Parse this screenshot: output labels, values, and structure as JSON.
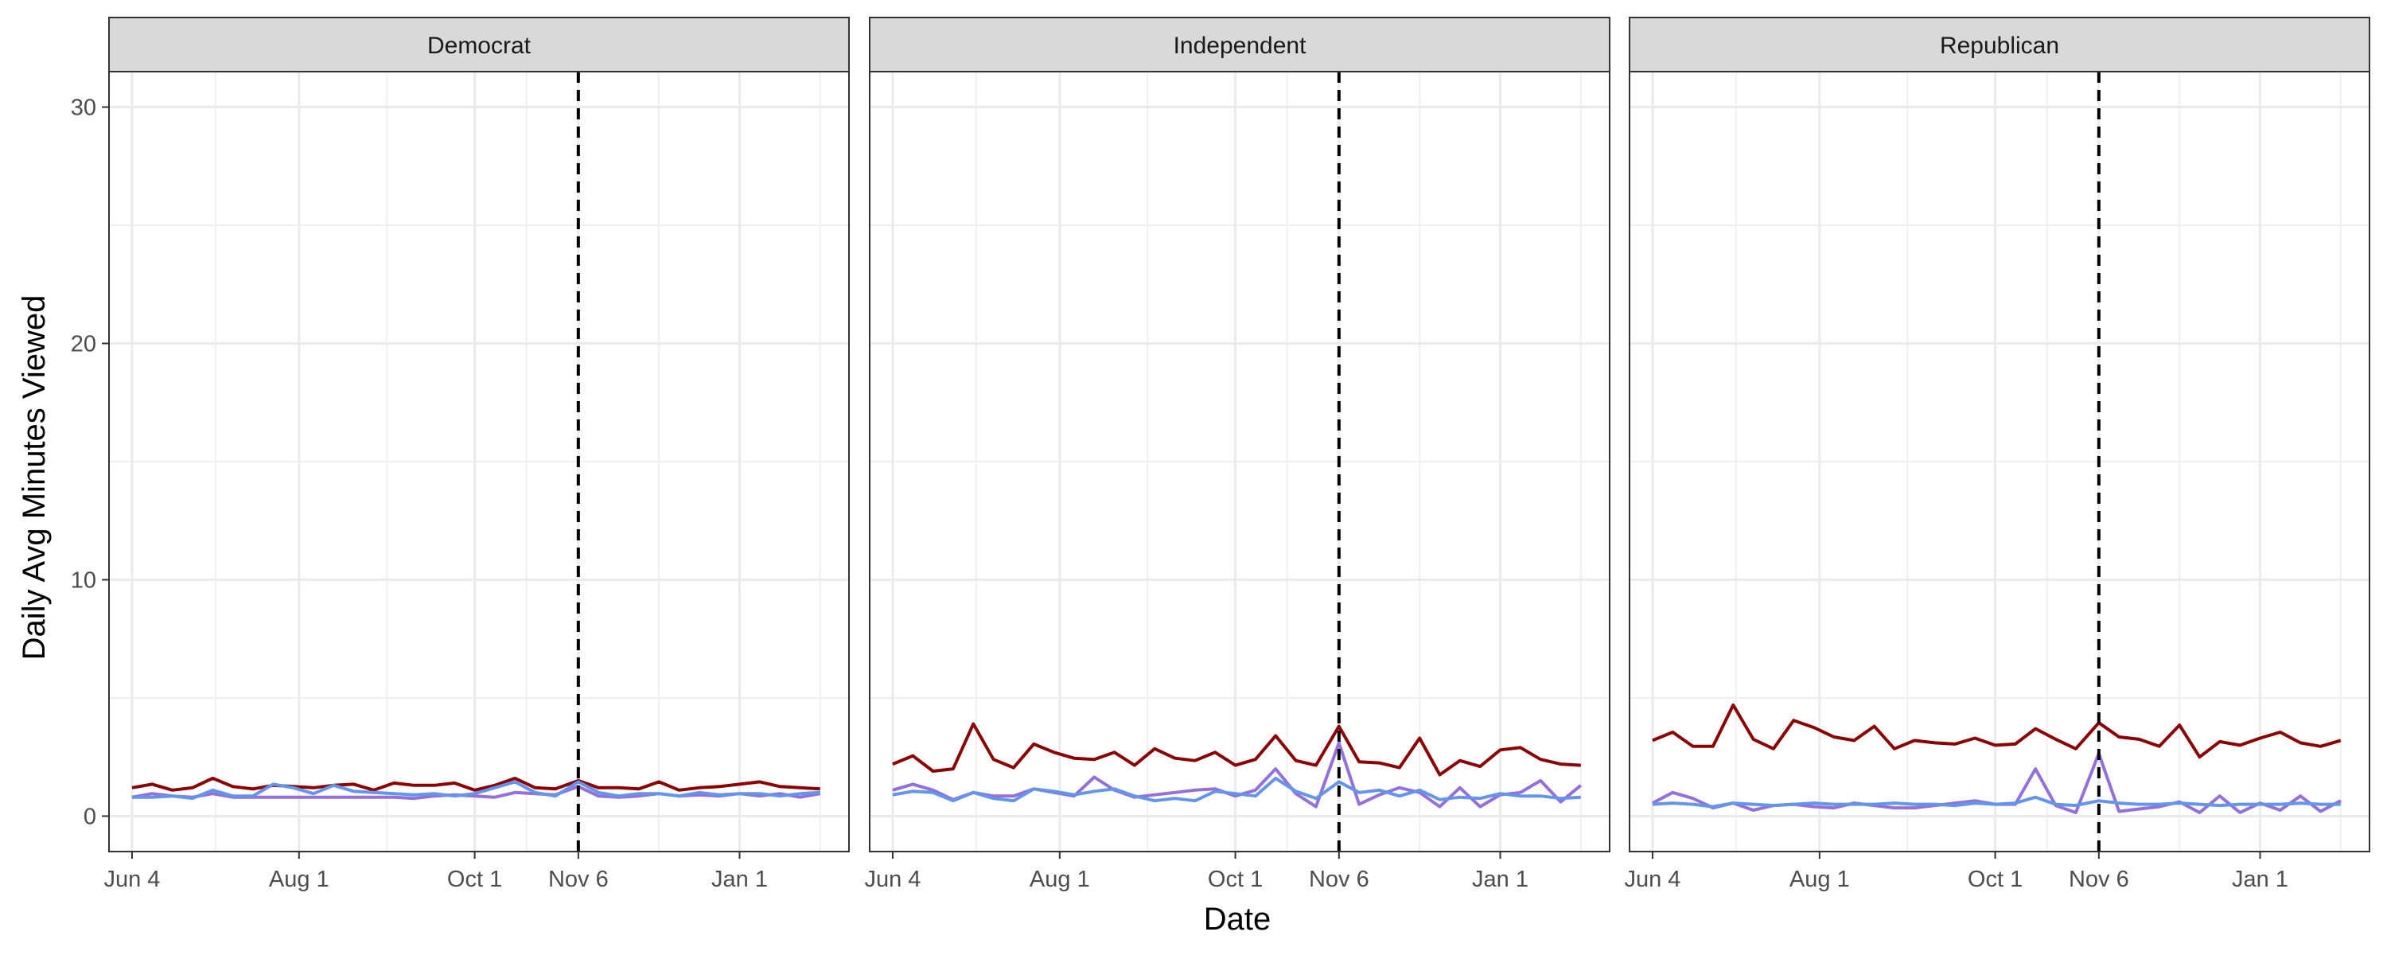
{
  "chart_data": {
    "type": "line",
    "xlabel": "Date",
    "ylabel": "Daily Avg Minutes Viewed",
    "ylim": [
      -1.5,
      31.5
    ],
    "yticks": [
      0,
      10,
      20,
      30
    ],
    "xlim": [
      "2020-05-27",
      "2021-02-08"
    ],
    "xticks": [
      {
        "date": "2020-06-04",
        "label": "Jun 4"
      },
      {
        "date": "2020-08-01",
        "label": "Aug 1"
      },
      {
        "date": "2020-10-01",
        "label": "Oct 1"
      },
      {
        "date": "2020-11-06",
        "label": "Nov 6"
      },
      {
        "date": "2021-01-01",
        "label": "Jan 1"
      }
    ],
    "vline": {
      "date": "2020-11-06",
      "style": "dashed",
      "color": "#000000"
    },
    "grid": true,
    "legend": "none",
    "series_colors": [
      "#8B0000",
      "#9370DB",
      "#6495ED"
    ],
    "x": [
      "2020-06-04",
      "2020-06-11",
      "2020-06-18",
      "2020-06-25",
      "2020-07-02",
      "2020-07-09",
      "2020-07-16",
      "2020-07-23",
      "2020-07-30",
      "2020-08-06",
      "2020-08-13",
      "2020-08-20",
      "2020-08-27",
      "2020-09-03",
      "2020-09-10",
      "2020-09-17",
      "2020-09-24",
      "2020-10-01",
      "2020-10-08",
      "2020-10-15",
      "2020-10-22",
      "2020-10-29",
      "2020-11-06",
      "2020-11-13",
      "2020-11-20",
      "2020-11-27",
      "2020-12-04",
      "2020-12-11",
      "2020-12-18",
      "2020-12-25",
      "2021-01-01",
      "2021-01-08",
      "2021-01-15",
      "2021-01-22",
      "2021-01-29"
    ],
    "panels": [
      {
        "title": "Democrat",
        "series": [
          {
            "values": [
              1.2,
              1.35,
              1.1,
              1.2,
              1.6,
              1.25,
              1.15,
              1.3,
              1.25,
              1.2,
              1.3,
              1.35,
              1.1,
              1.4,
              1.3,
              1.3,
              1.4,
              1.1,
              1.3,
              1.6,
              1.2,
              1.15,
              1.5,
              1.2,
              1.2,
              1.15,
              1.45,
              1.1,
              1.2,
              1.25,
              1.35,
              1.45,
              1.25,
              1.2,
              1.15
            ]
          },
          {
            "values": [
              0.8,
              0.95,
              0.85,
              0.8,
              0.95,
              0.8,
              0.8,
              0.8,
              0.8,
              0.8,
              0.8,
              0.8,
              0.8,
              0.8,
              0.75,
              0.85,
              0.9,
              0.85,
              0.8,
              1.0,
              0.95,
              0.9,
              1.25,
              0.85,
              0.8,
              0.85,
              0.95,
              0.85,
              0.9,
              0.85,
              0.95,
              0.85,
              0.95,
              0.8,
              0.95
            ]
          },
          {
            "values": [
              0.8,
              0.8,
              0.85,
              0.75,
              1.1,
              0.85,
              0.85,
              1.35,
              1.2,
              0.95,
              1.3,
              1.05,
              1.0,
              0.95,
              0.9,
              0.95,
              0.85,
              0.95,
              1.2,
              1.45,
              1.0,
              0.85,
              1.45,
              1.0,
              0.85,
              0.95,
              0.95,
              0.85,
              1.0,
              0.9,
              0.95,
              0.95,
              0.85,
              0.95,
              1.0
            ]
          }
        ]
      },
      {
        "title": "Independent",
        "series": [
          {
            "values": [
              2.2,
              2.55,
              1.9,
              2.0,
              3.9,
              2.4,
              2.05,
              3.05,
              2.7,
              2.45,
              2.4,
              2.7,
              2.15,
              2.85,
              2.45,
              2.35,
              2.7,
              2.15,
              2.4,
              3.4,
              2.35,
              2.15,
              3.8,
              2.3,
              2.25,
              2.05,
              3.3,
              1.75,
              2.35,
              2.1,
              2.8,
              2.9,
              2.4,
              2.2,
              2.15
            ]
          },
          {
            "values": [
              1.1,
              1.35,
              1.1,
              0.7,
              1.0,
              0.85,
              0.85,
              1.15,
              1.0,
              0.85,
              1.65,
              1.1,
              0.8,
              0.9,
              1.0,
              1.1,
              1.15,
              0.85,
              1.1,
              2.0,
              0.95,
              0.4,
              3.1,
              0.5,
              0.9,
              1.2,
              1.0,
              0.4,
              1.2,
              0.4,
              0.9,
              1.0,
              1.5,
              0.6,
              1.3
            ]
          },
          {
            "values": [
              0.9,
              1.05,
              1.0,
              0.65,
              1.0,
              0.75,
              0.65,
              1.15,
              1.05,
              0.9,
              1.05,
              1.15,
              0.85,
              0.65,
              0.75,
              0.65,
              1.05,
              0.95,
              0.85,
              1.6,
              1.05,
              0.75,
              1.45,
              1.0,
              1.1,
              0.85,
              1.1,
              0.7,
              0.8,
              0.75,
              0.95,
              0.85,
              0.85,
              0.75,
              0.8
            ]
          }
        ]
      },
      {
        "title": "Republican",
        "series": [
          {
            "values": [
              3.2,
              3.55,
              2.95,
              2.95,
              4.7,
              3.25,
              2.85,
              4.05,
              3.75,
              3.35,
              3.2,
              3.8,
              2.85,
              3.2,
              3.1,
              3.05,
              3.3,
              3.0,
              3.05,
              3.7,
              3.25,
              2.85,
              3.95,
              3.35,
              3.25,
              2.95,
              3.85,
              2.5,
              3.15,
              3.0,
              3.3,
              3.55,
              3.1,
              2.95,
              3.2
            ]
          },
          {
            "values": [
              0.55,
              1.0,
              0.75,
              0.35,
              0.55,
              0.25,
              0.45,
              0.5,
              0.4,
              0.35,
              0.55,
              0.45,
              0.35,
              0.35,
              0.45,
              0.55,
              0.65,
              0.5,
              0.5,
              2.0,
              0.45,
              0.15,
              2.65,
              0.2,
              0.3,
              0.4,
              0.6,
              0.15,
              0.85,
              0.15,
              0.55,
              0.25,
              0.85,
              0.2,
              0.65
            ]
          },
          {
            "values": [
              0.5,
              0.55,
              0.5,
              0.4,
              0.55,
              0.5,
              0.45,
              0.5,
              0.55,
              0.5,
              0.5,
              0.5,
              0.55,
              0.5,
              0.5,
              0.45,
              0.55,
              0.5,
              0.55,
              0.8,
              0.5,
              0.45,
              0.65,
              0.55,
              0.5,
              0.5,
              0.55,
              0.5,
              0.45,
              0.5,
              0.5,
              0.5,
              0.55,
              0.5,
              0.5
            ]
          }
        ]
      }
    ]
  }
}
